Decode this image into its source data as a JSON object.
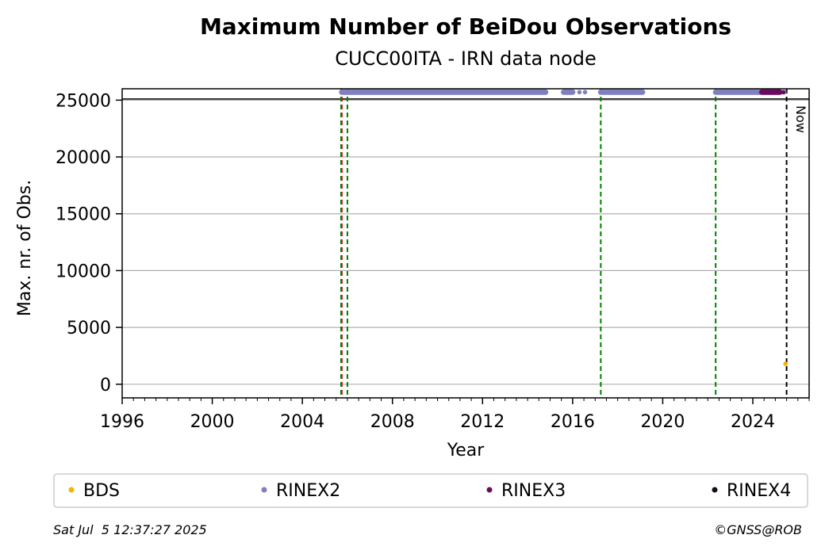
{
  "chart_data": {
    "type": "scatter",
    "title": "Maximum Number of BeiDou Observations",
    "subtitle": "CUCC00ITA - IRN data node",
    "xlabel": "Year",
    "ylabel": "Max. nr. of Obs.",
    "xlim": [
      1996,
      2026.5
    ],
    "ylim": [
      -1200,
      26000
    ],
    "xticks": [
      1996,
      2000,
      2004,
      2008,
      2012,
      2016,
      2020,
      2024
    ],
    "yticks": [
      0,
      5000,
      10000,
      15000,
      20000,
      25000
    ],
    "x_minor_tick_step": 0.5,
    "grid": "horizontal",
    "reference_line": {
      "y": 25100
    },
    "vertical_lines": [
      {
        "x": 2005.75,
        "color": "#cc0000",
        "style": "dashed"
      },
      {
        "x": 2005.72,
        "color": "#008000",
        "style": "dashed"
      },
      {
        "x": 2006.0,
        "color": "#008000",
        "style": "dashed"
      },
      {
        "x": 2017.25,
        "color": "#008000",
        "style": "dashed"
      },
      {
        "x": 2022.35,
        "color": "#008000",
        "style": "dashed"
      },
      {
        "x": 2025.5,
        "color": "#000000",
        "style": "dashed",
        "label": "Now"
      }
    ],
    "series": [
      {
        "name": "BDS",
        "color": "#f5b400",
        "points": [
          [
            2025.45,
            1800
          ]
        ]
      },
      {
        "name": "RINEX2",
        "color": "#8080c0",
        "segments": [
          [
            2005.75,
            2014.8
          ],
          [
            2015.6,
            2016.0
          ],
          [
            2017.25,
            2019.1
          ],
          [
            2022.35,
            2024.3
          ]
        ],
        "points": [
          [
            2016.3,
            25700
          ],
          [
            2016.55,
            25700
          ],
          [
            2025.4,
            25700
          ]
        ],
        "y": 25700
      },
      {
        "name": "RINEX3",
        "color": "#6a0a5e",
        "segments": [
          [
            2024.4,
            2025.2
          ]
        ],
        "points": [
          [
            2025.35,
            25700
          ]
        ],
        "y": 25700
      },
      {
        "name": "RINEX4",
        "color": "#1a0a1a",
        "segments": [],
        "points": []
      }
    ],
    "legend_placement": "bottom"
  },
  "footer": {
    "timestamp": "Sat Jul  5 12:37:27 2025",
    "credit": "©GNSS@ROB"
  },
  "now_label": "Now"
}
